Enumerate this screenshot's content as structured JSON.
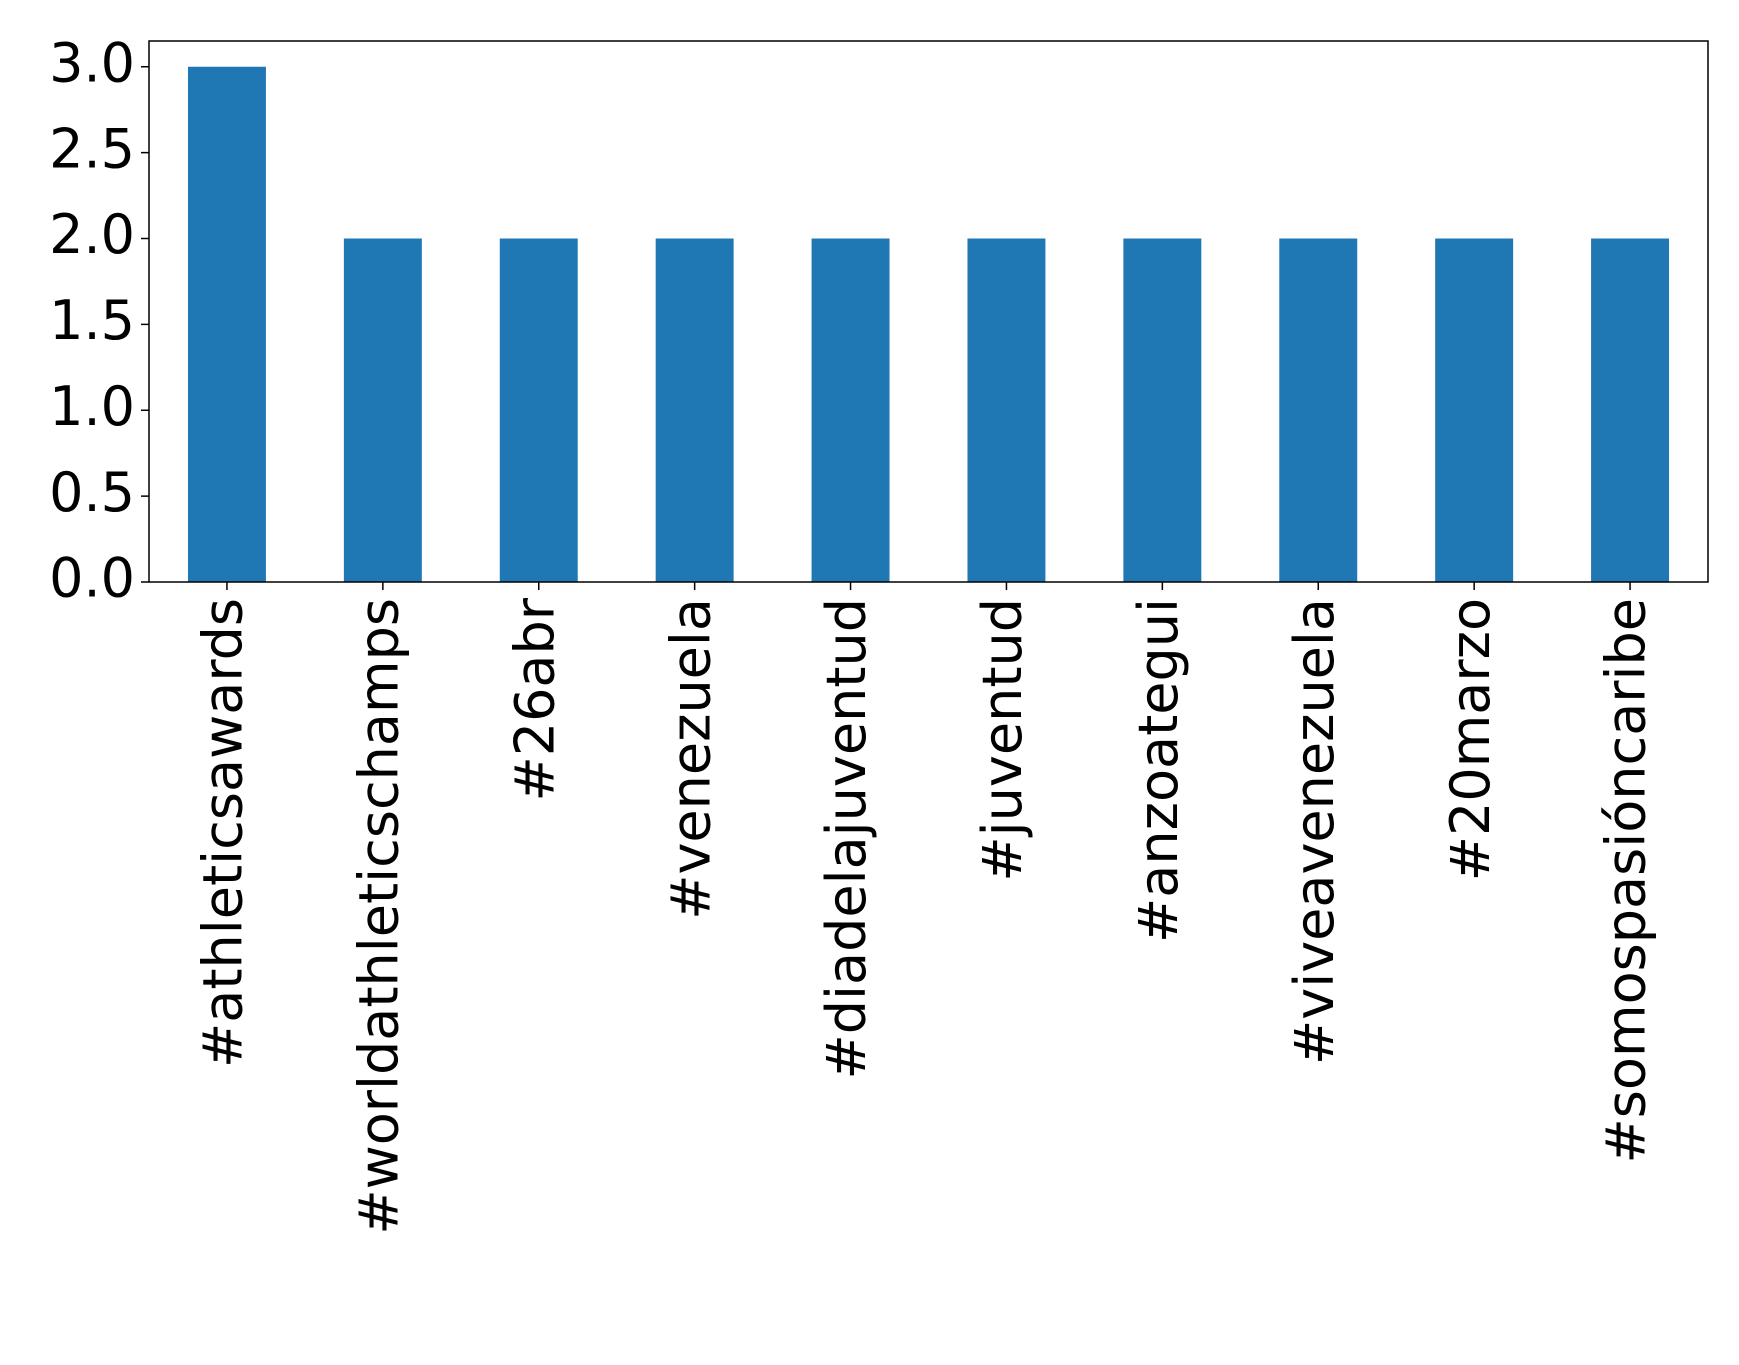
{
  "chart_data": {
    "type": "bar",
    "categories": [
      "#athleticsawards",
      "#worldathleticschamps",
      "#26abr",
      "#venezuela",
      "#diadelajuventud",
      "#juventud",
      "#anzoategui",
      "#viveavenezuela",
      "#20marzo",
      "#somospasióncaribe"
    ],
    "values": [
      3,
      2,
      2,
      2,
      2,
      2,
      2,
      2,
      2,
      2
    ],
    "color": "#1f77b4",
    "ylim": [
      0,
      3.15
    ],
    "yticks": [
      {
        "value": 0,
        "label": "0.0"
      },
      {
        "value": 0.5,
        "label": "0.5"
      },
      {
        "value": 1,
        "label": "1.0"
      },
      {
        "value": 1.5,
        "label": "1.5"
      },
      {
        "value": 2,
        "label": "2.0"
      },
      {
        "value": 2.5,
        "label": "2.5"
      },
      {
        "value": 3,
        "label": "3.0"
      }
    ]
  }
}
